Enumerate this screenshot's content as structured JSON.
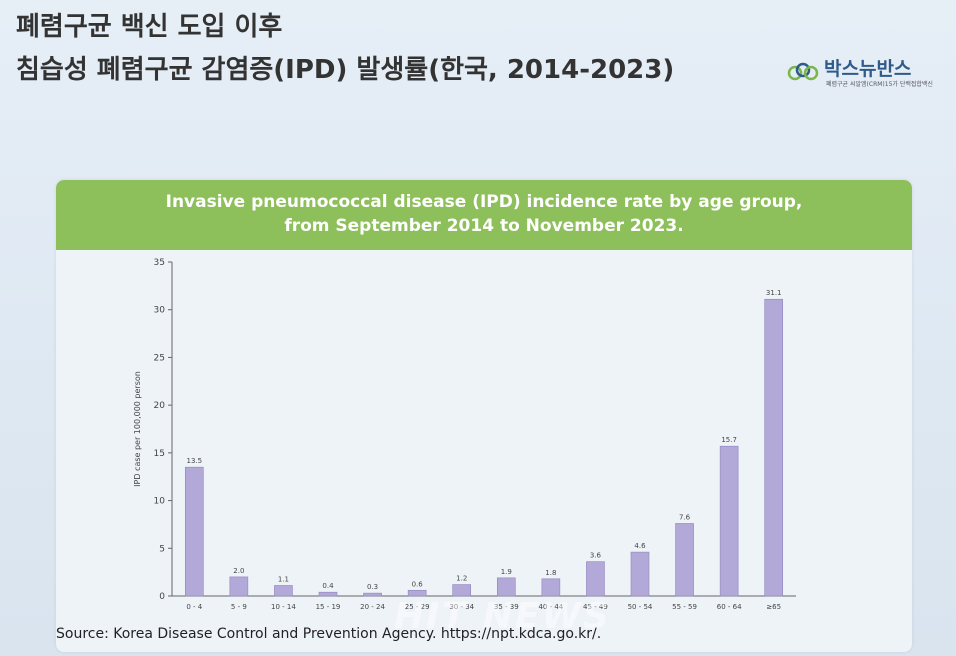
{
  "slide": {
    "title": "폐렴구균 백신 도입 이후",
    "subtitle": "침습성 폐렴구균 감염증(IPD) 발생률(한국, 2014-2023)"
  },
  "logo": {
    "text": "박스뉴반스",
    "tagline": "폐렴구균 씨알엠(CRM)15가 단백접합백신",
    "colors": [
      "#7ab648",
      "#2f5a8a"
    ]
  },
  "source": "Source: Korea Disease Control and Prevention Agency. https://npt.kdca.go.kr/.",
  "watermark": "HIT NEWS",
  "colors": {
    "bar": "#b3a9d8",
    "bar_stroke": "#8f84bd",
    "header": "#8dbf5a"
  },
  "chart_data": {
    "type": "bar",
    "title_lines": [
      "Invasive pneumococcal disease (IPD) incidence rate by age group,",
      "from September 2014 to November 2023."
    ],
    "ylabel": "IPD case per 100,000 person",
    "xlabel": "",
    "ylim": [
      0,
      35
    ],
    "yticks": [
      0,
      5,
      10,
      15,
      20,
      25,
      30,
      35
    ],
    "grid": false,
    "categories": [
      "0 - 4",
      "5 - 9",
      "10 - 14",
      "15 - 19",
      "20 - 24",
      "25 - 29",
      "30 - 34",
      "35 - 39",
      "40 - 44",
      "45 - 49",
      "50 - 54",
      "55 - 59",
      "60 - 64",
      "≥65"
    ],
    "values": [
      13.5,
      2.0,
      1.1,
      0.4,
      0.3,
      0.6,
      1.2,
      1.9,
      1.8,
      3.6,
      4.6,
      7.6,
      15.7,
      31.1
    ],
    "value_labels": [
      "13.5",
      "2.0",
      "1.1",
      "0.4",
      "0.3",
      "0.6",
      "1.2",
      "1.9",
      "1.8",
      "3.6",
      "4.6",
      "7.6",
      "15.7",
      "31.1"
    ]
  }
}
